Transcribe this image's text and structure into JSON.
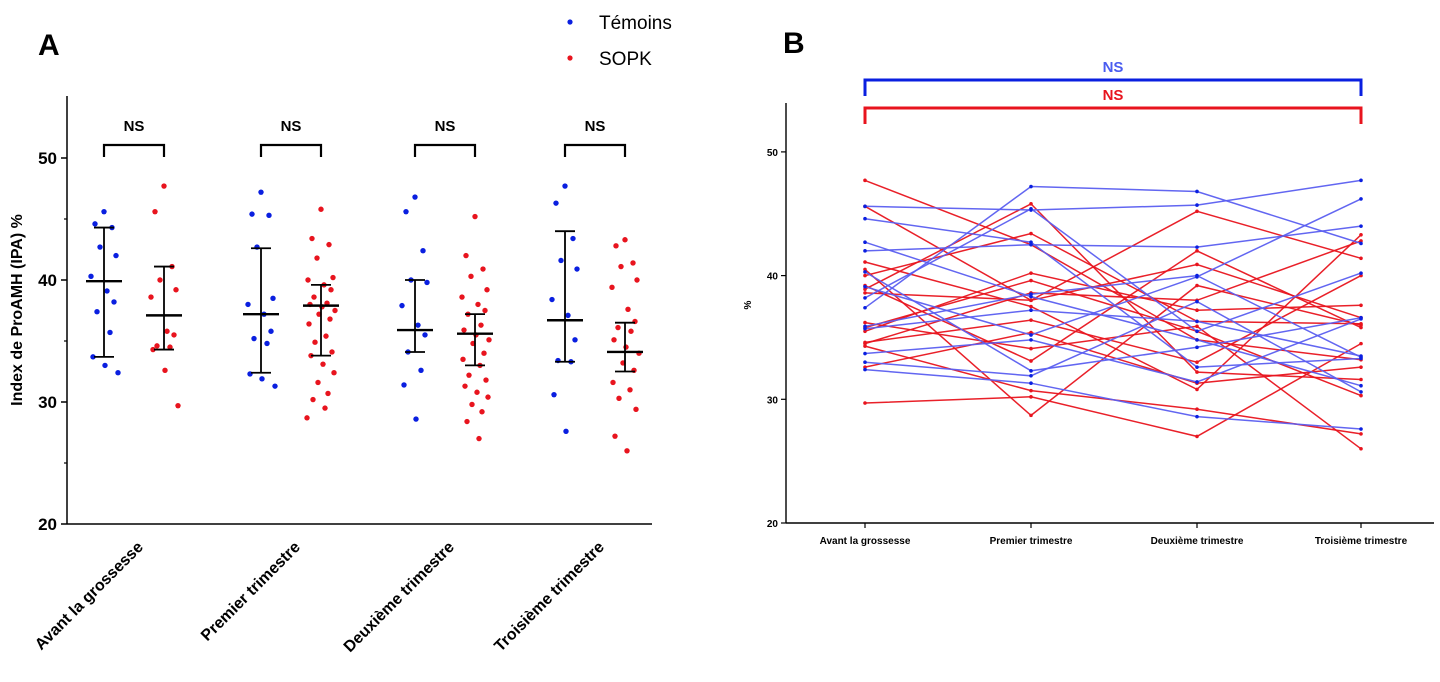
{
  "legend": [
    {
      "label": "Témoins",
      "color": "#0a1fe0"
    },
    {
      "label": "SOPK",
      "color": "#e8141e"
    }
  ],
  "colors": {
    "temoins": "#0a1fe0",
    "sopk": "#e8141e",
    "temoins_line": "#5a5ef0",
    "sopk_line": "#e8141e"
  },
  "chart_data": [
    {
      "panel": "A",
      "type": "scatter",
      "ylabel": "Index de ProAMH (IPA) %",
      "ylim": [
        20,
        55
      ],
      "yticks": [
        20,
        30,
        40,
        50
      ],
      "categories": [
        "Avant la grossesse",
        "Premier trimestre",
        "Deuxième trimestre",
        "Troisième trimestre"
      ],
      "significance": [
        "NS",
        "NS",
        "NS",
        "NS"
      ],
      "series": [
        {
          "name": "Témoins",
          "points": [
            [
              45.6,
              44.6,
              44.3,
              42.7,
              42.0,
              40.3,
              39.1,
              38.2,
              37.4,
              35.7,
              33.7,
              33.0,
              32.4
            ],
            [
              47.2,
              45.4,
              45.3,
              42.7,
              38.5,
              38.0,
              37.2,
              35.8,
              35.2,
              34.8,
              32.3,
              31.9,
              31.3
            ],
            [
              46.8,
              45.6,
              42.4,
              40.0,
              39.8,
              37.9,
              36.3,
              35.5,
              34.1,
              32.6,
              31.4,
              28.6
            ],
            [
              47.7,
              46.3,
              43.4,
              41.6,
              40.9,
              38.4,
              37.1,
              35.1,
              33.4,
              33.3,
              30.6,
              27.6
            ]
          ],
          "median": [
            39.9,
            37.2,
            35.9,
            36.7
          ],
          "iqr": [
            [
              33.7,
              44.3
            ],
            [
              32.4,
              42.6
            ],
            [
              34.1,
              40.0
            ],
            [
              33.3,
              44.0
            ]
          ]
        },
        {
          "name": "SOPK",
          "points": [
            [
              47.7,
              45.6,
              41.1,
              40.0,
              39.2,
              38.6,
              35.8,
              35.5,
              34.6,
              34.5,
              34.3,
              32.6,
              29.7
            ],
            [
              45.8,
              43.4,
              42.9,
              41.8,
              40.2,
              40.0,
              39.6,
              39.2,
              38.6,
              38.1,
              38.0,
              37.8,
              37.5,
              37.2,
              36.8,
              36.4,
              35.4,
              34.9,
              34.1,
              33.8,
              33.1,
              32.4,
              31.6,
              30.7,
              30.2,
              29.5,
              28.7
            ],
            [
              45.2,
              42.0,
              40.9,
              40.3,
              39.2,
              38.6,
              38.0,
              37.5,
              37.2,
              36.3,
              35.9,
              35.5,
              35.1,
              34.8,
              34.0,
              33.5,
              33.0,
              32.2,
              31.8,
              31.3,
              30.8,
              30.4,
              29.8,
              29.2,
              28.4,
              27.0
            ],
            [
              43.3,
              42.8,
              41.4,
              41.1,
              40.0,
              39.4,
              37.6,
              36.6,
              36.1,
              35.8,
              35.1,
              34.5,
              34.0,
              33.2,
              32.6,
              31.6,
              31.0,
              30.3,
              29.4,
              27.2,
              26.0
            ]
          ],
          "median": [
            37.1,
            37.9,
            35.6,
            34.1
          ],
          "iqr": [
            [
              34.3,
              41.1
            ],
            [
              33.8,
              39.6
            ],
            [
              33.0,
              37.2
            ],
            [
              32.5,
              36.5
            ]
          ]
        }
      ]
    },
    {
      "panel": "B",
      "type": "line",
      "ylabel": "%",
      "ylim": [
        20,
        54
      ],
      "yticks": [
        20,
        30,
        40,
        50
      ],
      "categories": [
        "Avant la grossesse",
        "Premier trimestre",
        "Deuxième trimestre",
        "Troisième trimestre"
      ],
      "significance": [
        {
          "label": "NS",
          "group": "Témoins"
        },
        {
          "label": "NS",
          "group": "SOPK"
        }
      ],
      "series": [
        {
          "name": "Témoins",
          "lines": [
            [
              45.6,
              45.3,
              45.7,
              47.7
            ],
            [
              44.6,
              42.7,
              32.6,
              33.3
            ],
            [
              42.7,
              38.3,
              34.8,
              31.1
            ],
            [
              42.0,
              42.5,
              42.3,
              44.0
            ],
            [
              40.3,
              32.3,
              34.2,
              36.6
            ],
            [
              39.1,
              35.2,
              39.9,
              46.2
            ],
            [
              38.2,
              45.4,
              35.5,
              40.2
            ],
            [
              37.4,
              47.2,
              46.8,
              42.6
            ],
            [
              35.7,
              37.2,
              36.3,
              33.5
            ],
            [
              33.7,
              34.8,
              31.4,
              36.5
            ],
            [
              33.0,
              31.9,
              37.9,
              30.6
            ],
            [
              32.4,
              31.3,
              28.6,
              27.6
            ],
            [
              35.9,
              38.5,
              40.0,
              33.4
            ]
          ]
        },
        {
          "name": "SOPK",
          "lines": [
            [
              47.7,
              42.5,
              34.8,
              33.2
            ],
            [
              45.6,
              38.0,
              45.2,
              41.4
            ],
            [
              41.1,
              37.5,
              30.8,
              43.3
            ],
            [
              40.0,
              43.4,
              36.3,
              36.1
            ],
            [
              39.2,
              33.1,
              42.0,
              35.8
            ],
            [
              38.6,
              38.0,
              40.9,
              36.6
            ],
            [
              35.8,
              39.6,
              35.5,
              30.3
            ],
            [
              35.5,
              40.2,
              37.2,
              37.6
            ],
            [
              34.6,
              36.4,
              33.0,
              40.0
            ],
            [
              34.5,
              38.6,
              38.0,
              42.8
            ],
            [
              34.3,
              30.7,
              29.2,
              27.2
            ],
            [
              32.6,
              35.4,
              31.3,
              32.6
            ],
            [
              29.7,
              30.2,
              27.0,
              34.5
            ],
            [
              40.5,
              28.7,
              39.2,
              36.0
            ],
            [
              38.9,
              45.8,
              32.2,
              31.6
            ],
            [
              36.2,
              34.1,
              35.9,
              26.0
            ]
          ]
        }
      ]
    }
  ]
}
